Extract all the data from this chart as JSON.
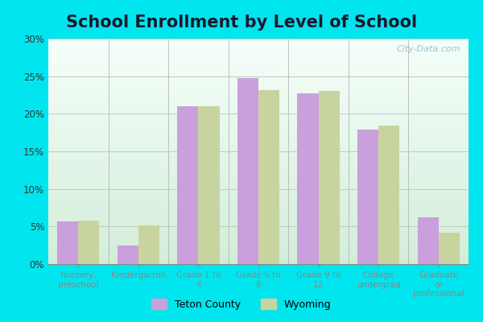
{
  "title": "School Enrollment by Level of School",
  "categories": [
    "Nursery,\npreschool",
    "Kindergarten",
    "Grade 1 to\n4",
    "Grade 5 to\n8",
    "Grade 9 to\n12",
    "College\nundergrad",
    "Graduate\nor\nprofessional"
  ],
  "teton_county": [
    5.7,
    2.5,
    21.0,
    24.8,
    22.7,
    17.9,
    6.2
  ],
  "wyoming": [
    5.8,
    5.1,
    21.0,
    23.1,
    23.0,
    18.4,
    4.2
  ],
  "teton_color": "#c9a0dc",
  "wyoming_color": "#c8d4a0",
  "background_outer": "#00e5ee",
  "background_inner_top": "#f5fffa",
  "background_inner_bottom": "#d4edda",
  "grid_color": "#bbccbb",
  "title_fontsize": 15,
  "ylim": [
    0,
    30
  ],
  "yticks": [
    0,
    5,
    10,
    15,
    20,
    25,
    30
  ],
  "legend_teton": "Teton County",
  "legend_wyoming": "Wyoming",
  "bar_width": 0.35,
  "watermark": "City-Data.com"
}
